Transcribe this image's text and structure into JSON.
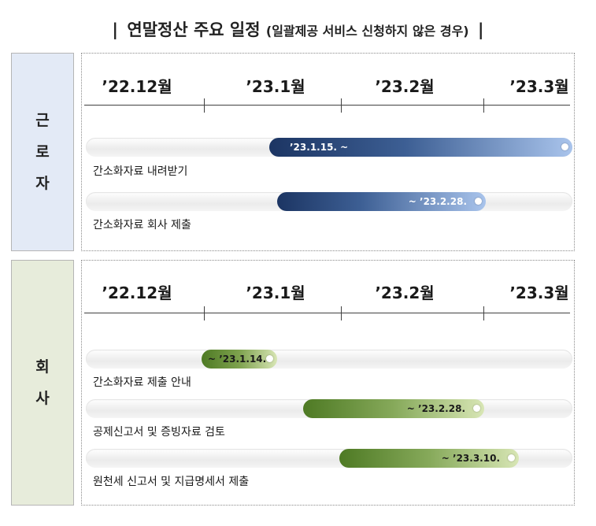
{
  "title": {
    "main": "연말정산 주요 일정",
    "sub": "(일괄제공 서비스 신청하지 않은 경우)",
    "bar": "|"
  },
  "timeline": {
    "months": [
      "’22.12월",
      "’23.1월",
      "’23.2월",
      "’23.3월"
    ]
  },
  "worker": {
    "label_chars": [
      "근",
      "로",
      "자"
    ],
    "rows": [
      {
        "label": "간소화자료 내려받기",
        "period": "’23.1.15. ~"
      },
      {
        "label": "간소화자료 회사 제출",
        "period": "~ ’23.2.28."
      }
    ]
  },
  "company": {
    "label_chars": [
      "회",
      "사"
    ],
    "rows": [
      {
        "label": "간소화자료 제출 안내",
        "period": "~ ’23.1.14."
      },
      {
        "label": "공제신고서 및 증빙자료 검토",
        "period": "~ ’23.2.28."
      },
      {
        "label": "원천세 신고서 및 지급명세서 제출",
        "period": "~ ’23.3.10."
      }
    ]
  },
  "colors": {
    "worker_dark": "#1c3563",
    "worker_light": "#a9c4ec",
    "company_dark": "#4e7a24",
    "company_light": "#d8e6b5"
  }
}
